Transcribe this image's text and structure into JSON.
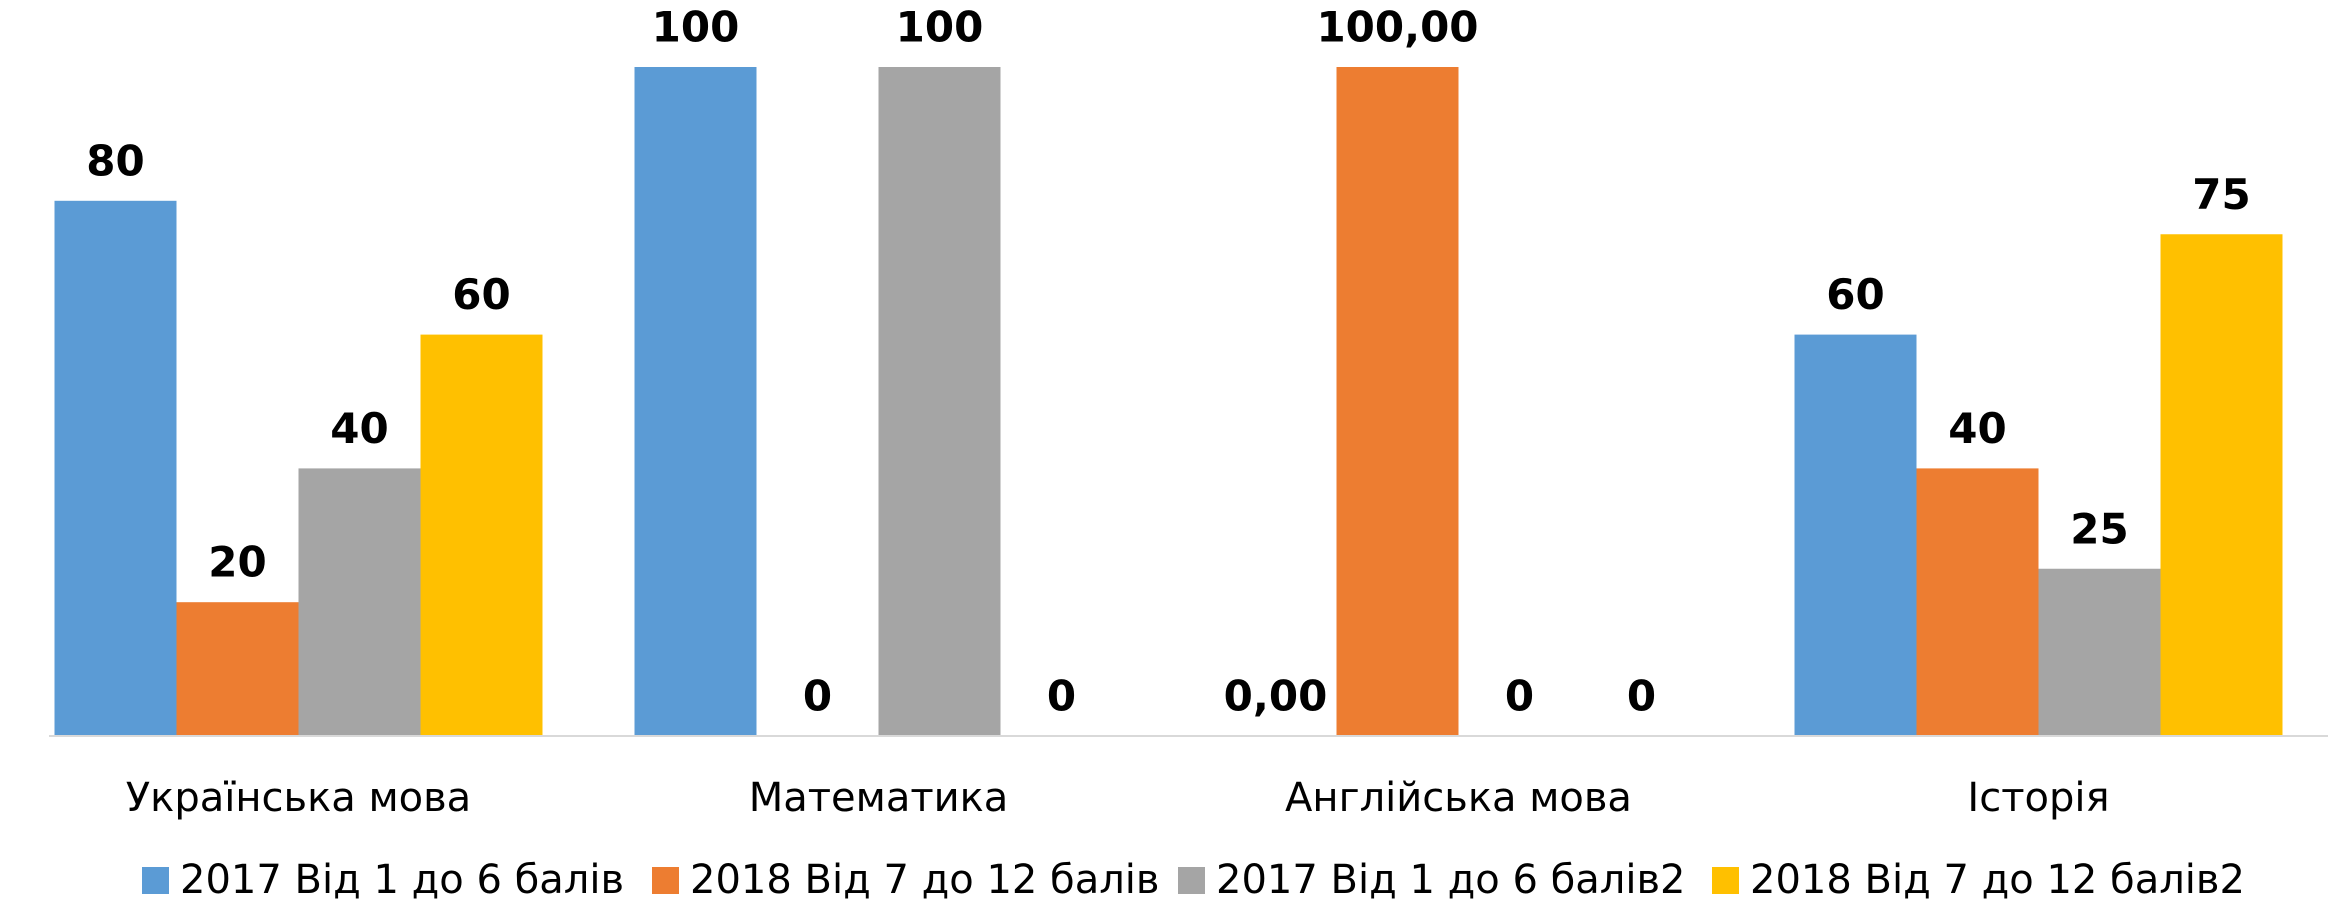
{
  "chart_data": {
    "type": "bar",
    "categories": [
      "Українська мова",
      "Математика",
      "Англійська мова",
      "Історія"
    ],
    "series": [
      {
        "name": "2017 Від 1 до 6 балів",
        "color": "#5b9bd5",
        "values": [
          80,
          100,
          0,
          60
        ],
        "value_labels": [
          "80",
          "100",
          "0,00",
          "60"
        ]
      },
      {
        "name": "2018 Від 7 до 12 балів",
        "color": "#ed7d31",
        "values": [
          20,
          0,
          100,
          40
        ],
        "value_labels": [
          "20",
          "0",
          "100,00",
          "40"
        ]
      },
      {
        "name": "2017 Від 1 до 6 балів2",
        "color": "#a5a5a5",
        "values": [
          40,
          100,
          0,
          25
        ]
      },
      {
        "name": "2018 Від 7 до 12 балів2",
        "color": "#ffc000",
        "values": [
          60,
          0,
          0,
          75
        ]
      }
    ],
    "ylim": [
      0,
      100
    ],
    "legend": "bottom"
  }
}
